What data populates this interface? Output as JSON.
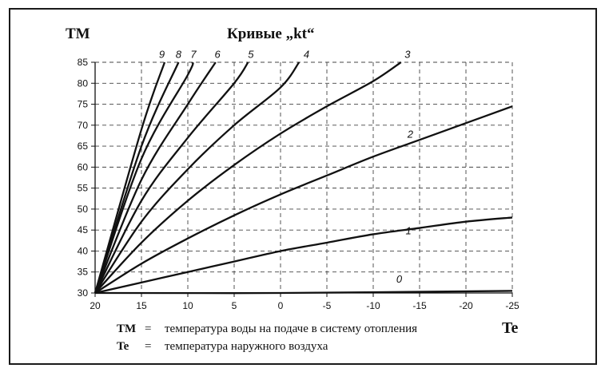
{
  "chart_data": {
    "type": "line",
    "title": "Кривые „kt“",
    "ylabel": "TM",
    "xlabel": "Te",
    "xlim": [
      20,
      -25
    ],
    "ylim": [
      30,
      85
    ],
    "x_ticks": [
      "20",
      "15",
      "10",
      "5",
      "0",
      "-5",
      "-10",
      "-15",
      "-20",
      "-25"
    ],
    "y_ticks": [
      "30",
      "35",
      "40",
      "45",
      "50",
      "55",
      "60",
      "65",
      "70",
      "75",
      "80",
      "85"
    ],
    "grid": "dashed",
    "series": [
      {
        "name": "0",
        "x": [
          20,
          0,
          -25
        ],
        "y": [
          30,
          30,
          30.5
        ]
      },
      {
        "name": "1",
        "x": [
          20,
          15,
          10,
          5,
          0,
          -5,
          -10,
          -15,
          -20,
          -25
        ],
        "y": [
          30,
          32.5,
          35,
          37.5,
          40,
          42,
          44,
          45.5,
          47,
          48
        ]
      },
      {
        "name": "2",
        "x": [
          20,
          15,
          10,
          5,
          0,
          -5,
          -10,
          -15,
          -20,
          -25
        ],
        "y": [
          30,
          37,
          43,
          48.5,
          53.5,
          58,
          62.5,
          66.5,
          70.5,
          74.5
        ]
      },
      {
        "name": "3",
        "x": [
          20,
          15,
          10,
          5,
          0,
          -5,
          -10,
          -13
        ],
        "y": [
          30,
          42,
          52,
          60.5,
          68,
          74.5,
          80.5,
          85
        ]
      },
      {
        "name": "4",
        "x": [
          20,
          15,
          10,
          5,
          0,
          -2
        ],
        "y": [
          30,
          47,
          59.5,
          70,
          79,
          85
        ]
      },
      {
        "name": "5",
        "x": [
          20,
          15,
          10,
          5,
          3.5
        ],
        "y": [
          30,
          52,
          67,
          80,
          85
        ]
      },
      {
        "name": "6",
        "x": [
          20,
          15,
          10,
          7
        ],
        "y": [
          30,
          57,
          75,
          85
        ]
      },
      {
        "name": "7",
        "x": [
          20,
          15,
          10,
          9.5
        ],
        "y": [
          30,
          62,
          82,
          85
        ]
      },
      {
        "name": "8",
        "x": [
          20,
          15,
          11
        ],
        "y": [
          30,
          65,
          85
        ]
      },
      {
        "name": "9",
        "x": [
          20,
          15,
          12.5
        ],
        "y": [
          30,
          69,
          85
        ]
      }
    ],
    "curve_labels": [
      {
        "text": "0",
        "x": -12.8,
        "y": 32.5
      },
      {
        "text": "1",
        "x": -13.8,
        "y": 44
      },
      {
        "text": "2",
        "x": -14,
        "y": 67
      },
      {
        "text": "3",
        "x": -13.7,
        "y": 86
      },
      {
        "text": "4",
        "x": -2.8,
        "y": 86
      },
      {
        "text": "5",
        "x": 3.2,
        "y": 86
      },
      {
        "text": "6",
        "x": 6.8,
        "y": 86
      },
      {
        "text": "7",
        "x": 9.4,
        "y": 86
      },
      {
        "text": "8",
        "x": 11,
        "y": 86
      },
      {
        "text": "9",
        "x": 12.8,
        "y": 86
      }
    ]
  },
  "legend": {
    "row1_key": "TM",
    "row1_sep": "=",
    "row1_text": "температура воды на подаче в систему отопления",
    "row2_key": "Te",
    "row2_sep": "=",
    "row2_text": "температура наружного воздуха"
  }
}
